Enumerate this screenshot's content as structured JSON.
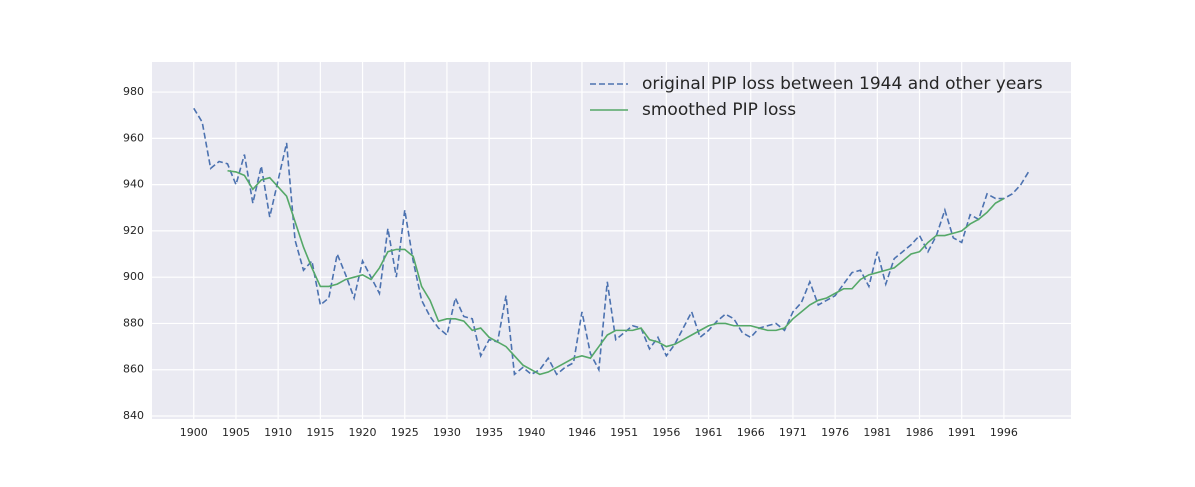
{
  "chart_data": {
    "type": "line",
    "x": [
      1900,
      1901,
      1902,
      1903,
      1904,
      1905,
      1906,
      1907,
      1908,
      1909,
      1910,
      1911,
      1912,
      1913,
      1914,
      1915,
      1916,
      1917,
      1918,
      1919,
      1920,
      1921,
      1922,
      1923,
      1924,
      1925,
      1926,
      1927,
      1928,
      1929,
      1930,
      1931,
      1932,
      1933,
      1934,
      1935,
      1936,
      1937,
      1938,
      1939,
      1940,
      1941,
      1942,
      1943,
      1944,
      1945,
      1946,
      1947,
      1948,
      1949,
      1950,
      1951,
      1952,
      1953,
      1954,
      1955,
      1956,
      1957,
      1958,
      1959,
      1960,
      1961,
      1962,
      1963,
      1964,
      1965,
      1966,
      1967,
      1968,
      1969,
      1970,
      1971,
      1972,
      1973,
      1974,
      1975,
      1976,
      1977,
      1978,
      1979,
      1980,
      1981,
      1982,
      1983,
      1984,
      1985,
      1986,
      1987,
      1988,
      1989,
      1990,
      1991,
      1992,
      1993,
      1994,
      1995,
      1996,
      1997,
      1998,
      1999
    ],
    "series": [
      {
        "name": "original PIP loss between 1944 and other years",
        "color": "#4c72b0",
        "dashed": true,
        "values": [
          973,
          967,
          947,
          950,
          949,
          940,
          953,
          932,
          948,
          926,
          942,
          958,
          916,
          903,
          907,
          888,
          891,
          910,
          901,
          891,
          907,
          900,
          893,
          921,
          900,
          929,
          907,
          890,
          883,
          878,
          875,
          891,
          883,
          882,
          866,
          873,
          872,
          892,
          858,
          861,
          858,
          860,
          865,
          858,
          861,
          863,
          885,
          867,
          860,
          898,
          873,
          876,
          879,
          878,
          869,
          874,
          866,
          871,
          878,
          885,
          874,
          877,
          881,
          884,
          882,
          876,
          874,
          878,
          879,
          880,
          877,
          885,
          889,
          898,
          888,
          890,
          892,
          897,
          902,
          903,
          896,
          911,
          897,
          908,
          911,
          914,
          918,
          911,
          918,
          929,
          917,
          915,
          927,
          925,
          936,
          934,
          934,
          936,
          940,
          946
        ]
      },
      {
        "name": "smoothed PIP loss",
        "color": "#55a868",
        "dashed": false,
        "values": [
          null,
          null,
          null,
          null,
          946,
          945.5,
          944,
          938,
          942,
          943,
          939,
          935,
          924,
          913,
          904,
          896,
          896,
          897,
          899,
          900,
          901,
          899,
          904,
          911,
          912,
          912,
          909,
          896,
          890,
          881,
          882,
          882,
          881,
          877,
          878,
          874,
          872,
          870,
          866,
          862,
          860,
          858,
          859,
          861,
          863,
          865,
          866,
          865,
          870,
          875,
          877,
          877,
          877,
          878,
          873,
          872,
          870,
          871,
          873,
          875,
          877,
          879,
          880,
          880,
          879,
          879,
          879,
          878,
          877,
          877,
          878,
          882,
          885,
          888,
          890,
          891,
          893,
          895,
          895,
          899,
          901,
          902,
          903,
          904,
          907,
          910,
          911,
          915,
          918,
          918,
          919,
          920,
          923,
          925,
          928,
          932,
          934,
          null,
          null,
          null
        ]
      }
    ],
    "xlim": [
      1895.05,
      2003.95
    ],
    "xticks": [
      1900,
      1905,
      1910,
      1915,
      1920,
      1925,
      1930,
      1935,
      1940,
      1946,
      1951,
      1956,
      1961,
      1966,
      1971,
      1976,
      1981,
      1986,
      1991,
      1996
    ],
    "ylim": [
      838.7,
      993
    ],
    "yticks": [
      840,
      860,
      880,
      900,
      920,
      940,
      960,
      980
    ],
    "grid": true,
    "legend": "upper right"
  }
}
